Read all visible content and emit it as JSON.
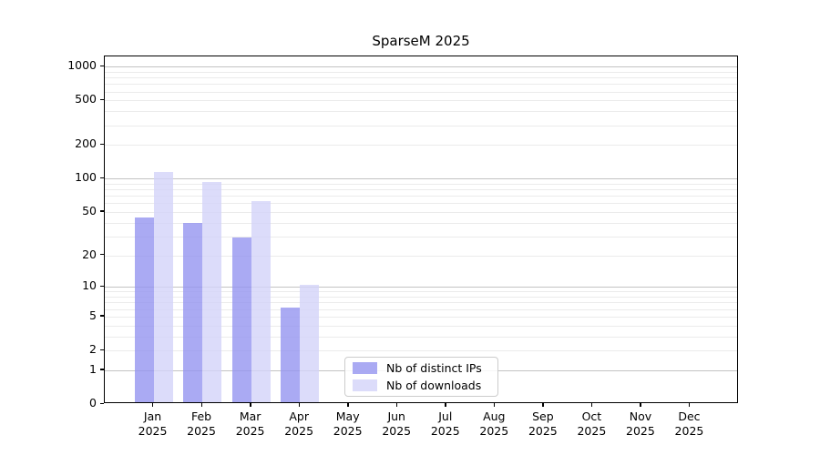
{
  "title": "SparseM 2025",
  "legend": {
    "items": [
      {
        "label": "Nb of distinct IPs",
        "color": "#9595f0"
      },
      {
        "label": "Nb of downloads",
        "color": "#d3d3f9"
      }
    ]
  },
  "colors": {
    "distinct_ips": "#9595f0",
    "downloads": "#d3d3f9",
    "major_grid": "#c3c3c3",
    "minor_grid": "#ebebeb",
    "axis": "#000000"
  },
  "chart_data": {
    "type": "bar",
    "title": "SparseM 2025",
    "categories": [
      "Jan",
      "Feb",
      "Mar",
      "Apr",
      "May",
      "Jun",
      "Jul",
      "Aug",
      "Sep",
      "Oct",
      "Nov",
      "Dec"
    ],
    "category_year": "2025",
    "series": [
      {
        "name": "Nb of distinct IPs",
        "color": "#9595f0",
        "values": [
          43,
          38,
          28,
          6,
          0,
          0,
          0,
          0,
          0,
          0,
          0,
          0
        ]
      },
      {
        "name": "Nb of downloads",
        "color": "#d3d3f9",
        "values": [
          110,
          90,
          60,
          10,
          0,
          0,
          0,
          0,
          0,
          0,
          0,
          0
        ]
      }
    ],
    "xlabel": "",
    "ylabel": "",
    "yscale": "log1p",
    "yticks": [
      0,
      1,
      2,
      5,
      10,
      20,
      50,
      100,
      200,
      500,
      1000
    ],
    "ylim": [
      0,
      1230
    ],
    "grid": "both",
    "legend_position": "lower center"
  }
}
